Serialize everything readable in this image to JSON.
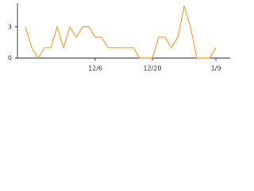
{
  "chart_data": {
    "type": "line",
    "categories": [
      null,
      null,
      null,
      null,
      null,
      null,
      null,
      null,
      null,
      null,
      null,
      "12/6",
      null,
      null,
      null,
      null,
      null,
      null,
      null,
      null,
      "12/20",
      null,
      null,
      null,
      null,
      null,
      null,
      null,
      null,
      null,
      "1/9"
    ],
    "series": [
      {
        "color": "#f0a040",
        "values": [
          3,
          1,
          0,
          1,
          1,
          3,
          1,
          3,
          2,
          3,
          3,
          2,
          2,
          1,
          1,
          1,
          1,
          1,
          0,
          0,
          0,
          2,
          2,
          1,
          2,
          5,
          3,
          0,
          0,
          0,
          1
        ]
      }
    ],
    "ylim": [
      0,
      5.2
    ],
    "yticks": [
      0,
      3
    ]
  }
}
